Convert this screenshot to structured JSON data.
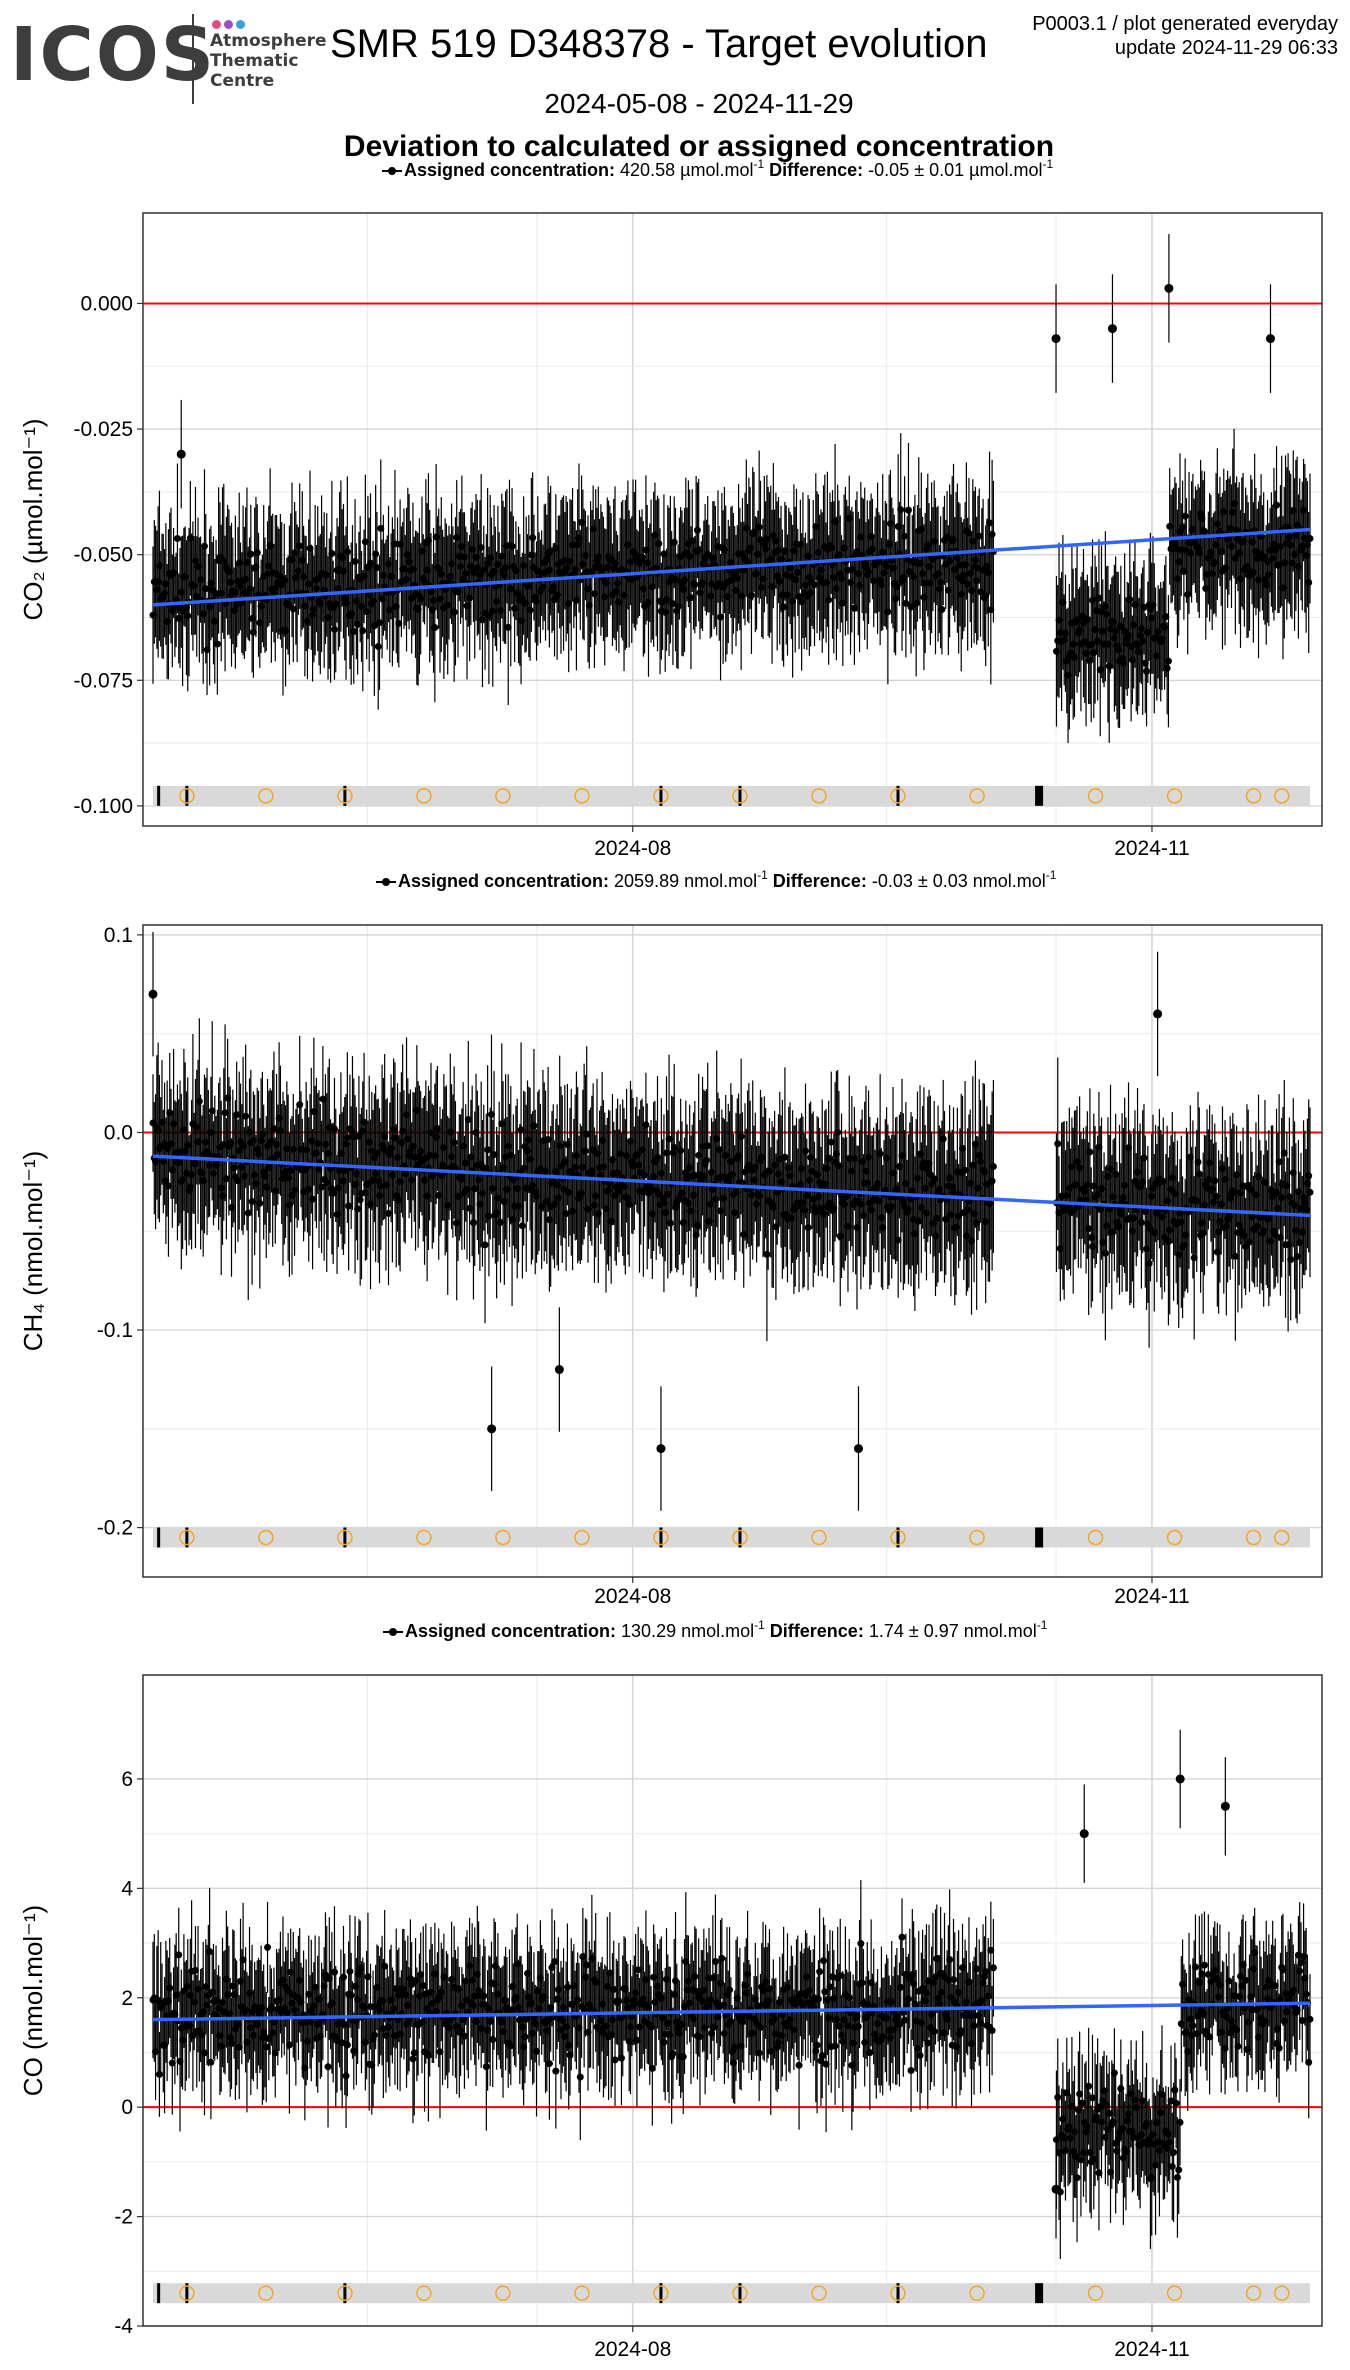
{
  "header": {
    "logo_text": "ICOS",
    "logo_sub": [
      "Atmosphere",
      "Thematic",
      "Centre"
    ],
    "logo_dot_colors": [
      "#e84a7a",
      "#9b4fc4",
      "#3aa0d8"
    ],
    "title": "SMR 519 D348378 - Target evolution",
    "meta_line1": "P0003.1 / plot generated everyday",
    "meta_line2": "update  2024-11-29 06:33",
    "date_range": "2024-05-08 - 2024-11-29",
    "subtitle": "Deviation to calculated or assigned concentration"
  },
  "colors": {
    "points": "#000000",
    "trend": "#3366ff",
    "zero_line": "#ff0000",
    "marker_strip": "#d9d9d9",
    "markers": "#f5a623"
  },
  "chart_data": [
    {
      "type": "scatter",
      "gas": "CO2",
      "legend": {
        "assigned_label": "Assigned concentration:",
        "assigned_value": "420.58 µmol.mol",
        "difference_label": "Difference:",
        "difference_value": "-0.05 ± 0.01 µmol.mol"
      },
      "ylabel": "CO₂ (µmol.mol⁻¹)",
      "x_ticks": [
        "2024-08",
        "2024-11"
      ],
      "ylim": [
        -0.104,
        0.018
      ],
      "y_ticks": [
        0.0,
        -0.025,
        -0.05,
        -0.075,
        -0.1
      ],
      "y_tick_labels": [
        "0.000",
        "-0.025",
        "-0.050",
        "-0.075",
        "-0.100"
      ],
      "trend": {
        "start": -0.06,
        "end": -0.045
      },
      "scatter": {
        "mean_start": -0.058,
        "mean_end": -0.048,
        "spread": 0.008,
        "err": 0.012,
        "outliers": [
          [
            160,
            -0.007
          ],
          [
            170,
            -0.005
          ],
          [
            180,
            0.003
          ],
          [
            198,
            -0.007
          ],
          [
            5,
            -0.03
          ]
        ]
      },
      "marker_y": -0.098
    },
    {
      "type": "scatter",
      "gas": "CH4",
      "legend": {
        "assigned_label": "Assigned concentration:",
        "assigned_value": "2059.89 nmol.mol",
        "difference_label": "Difference:",
        "difference_value": "-0.03 ± 0.03 nmol.mol"
      },
      "ylabel": "CH₄ (nmol.mol⁻¹)",
      "x_ticks": [
        "2024-08",
        "2024-11"
      ],
      "ylim": [
        -0.225,
        0.105
      ],
      "y_ticks": [
        0.1,
        0.0,
        -0.1,
        -0.2
      ],
      "y_tick_labels": [
        "0.1",
        "0.0",
        "-0.1",
        "-0.2"
      ],
      "trend": {
        "start": -0.012,
        "end": -0.042
      },
      "scatter": {
        "mean_start": -0.012,
        "mean_end": -0.04,
        "spread": 0.025,
        "err": 0.035,
        "outliers": [
          [
            0,
            0.07
          ],
          [
            60,
            -0.15
          ],
          [
            72,
            -0.12
          ],
          [
            90,
            -0.16
          ],
          [
            125,
            -0.16
          ],
          [
            178,
            0.06
          ]
        ]
      },
      "marker_y": -0.205
    },
    {
      "type": "scatter",
      "gas": "CO",
      "legend": {
        "assigned_label": "Assigned concentration:",
        "assigned_value": "130.29 nmol.mol",
        "difference_label": "Difference:",
        "difference_value": "1.74 ± 0.97 nmol.mol"
      },
      "ylabel": "CO (nmol.mol⁻¹)",
      "x_ticks": [
        "2024-08",
        "2024-11"
      ],
      "ylim": [
        -4.0,
        7.9
      ],
      "y_ticks": [
        6,
        4,
        2,
        0,
        -2,
        -4
      ],
      "y_tick_labels": [
        "6",
        "4",
        "2",
        "0",
        "-2",
        "-4"
      ],
      "trend": {
        "start": 1.6,
        "end": 1.9
      },
      "scatter": {
        "mean_start": 1.7,
        "mean_end": 1.9,
        "spread": 0.9,
        "err": 1.0,
        "outliers": [
          [
            165,
            5.0
          ],
          [
            182,
            6.0
          ],
          [
            190,
            5.5
          ],
          [
            160,
            -1.5
          ]
        ]
      },
      "marker_y": -3.4
    }
  ],
  "axis": {
    "x_start": "2024-05-08",
    "x_end": "2024-11-29",
    "x_tick_dates": [
      "2024-08-01",
      "2024-11-01"
    ],
    "gap": [
      "2024-10-04",
      "2024-10-15"
    ],
    "marker_open_dates": [
      "2024-05-14",
      "2024-05-28",
      "2024-06-11",
      "2024-06-25",
      "2024-07-09",
      "2024-07-23",
      "2024-08-06",
      "2024-08-20",
      "2024-09-03",
      "2024-09-17",
      "2024-10-01",
      "2024-10-22",
      "2024-11-05",
      "2024-11-19",
      "2024-11-24"
    ],
    "marker_tick_dates": [
      "2024-05-09",
      "2024-05-14",
      "2024-06-11",
      "2024-08-06",
      "2024-08-20",
      "2024-09-17",
      "2024-10-12"
    ]
  }
}
